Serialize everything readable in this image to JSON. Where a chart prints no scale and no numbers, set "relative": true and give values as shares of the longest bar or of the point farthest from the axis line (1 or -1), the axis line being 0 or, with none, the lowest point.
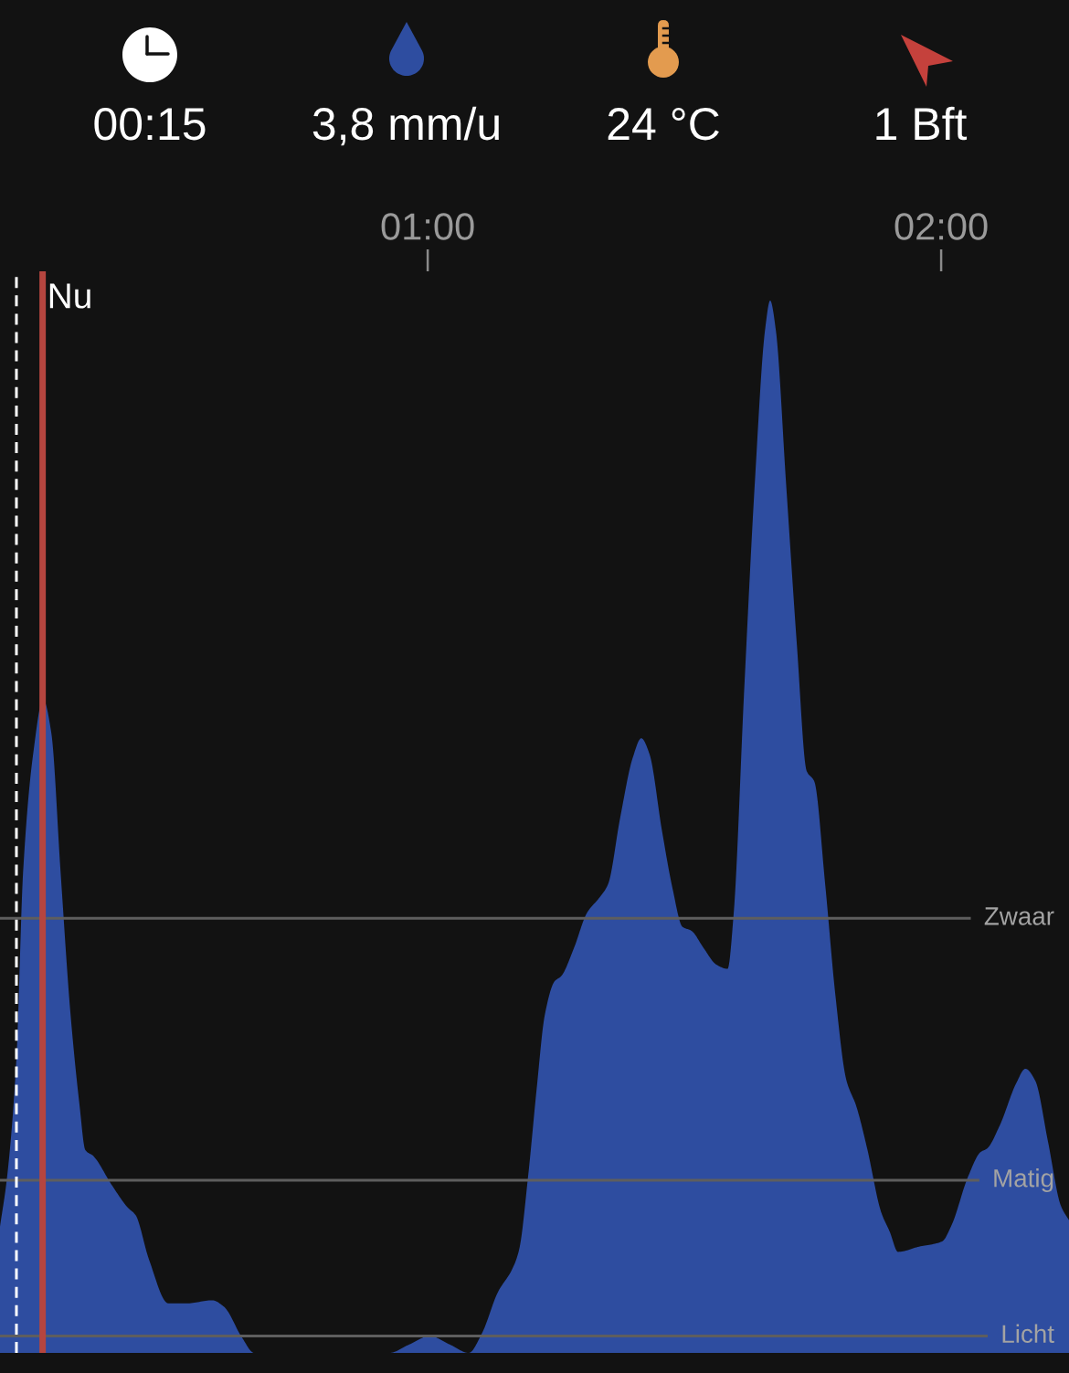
{
  "chart_data": [
    {
      "type": "other",
      "annotations": [
        "00:15",
        "3,8 mm/u",
        "24 °C",
        "1 Bft"
      ]
    },
    {
      "type": "area",
      "relative": true,
      "x": [
        0.167,
        0.181,
        0.199,
        0.212,
        0.231,
        0.251,
        0.267,
        0.285,
        0.304,
        0.322,
        0.333,
        0.349,
        0.384,
        0.416,
        0.431,
        0.457,
        0.495,
        0.53,
        0.58,
        0.603,
        0.639,
        0.662,
        0.925,
        0.964,
        1.004,
        1.043,
        1.08,
        1.105,
        1.137,
        1.165,
        1.178,
        1.196,
        1.212,
        1.228,
        1.247,
        1.26,
        1.285,
        1.31,
        1.335,
        1.351,
        1.375,
        1.399,
        1.416,
        1.432,
        1.456,
        1.477,
        1.496,
        1.514,
        1.537,
        1.562,
        1.584,
        1.596,
        1.616,
        1.637,
        1.657,
        1.667,
        1.678,
        1.698,
        1.719,
        1.738,
        1.753,
        1.774,
        1.794,
        1.815,
        1.835,
        1.856,
        1.883,
        1.9,
        1.916,
        1.957,
        2.002,
        2.02,
        2.052,
        2.077,
        2.089,
        2.114,
        2.146,
        2.164,
        2.183,
        2.208,
        2.233,
        2.249
      ],
      "series": [
        {
          "color": "#2e4da0",
          "values": [
            0.12,
            0.168,
            0.28,
            0.457,
            0.567,
            0.621,
            0.589,
            0.457,
            0.324,
            0.235,
            0.193,
            0.187,
            0.16,
            0.138,
            0.131,
            0.089,
            0.047,
            0.047,
            0.05,
            0.044,
            0.014,
            0,
            0,
            0.008,
            0.016,
            0.008,
            0,
            0.018,
            0.058,
            0.08,
            0.098,
            0.17,
            0.25,
            0.321,
            0.353,
            0.358,
            0.385,
            0.418,
            0.433,
            0.445,
            0.509,
            0.565,
            0.584,
            0.569,
            0.497,
            0.441,
            0.405,
            0.401,
            0.385,
            0.369,
            0.365,
            0.418,
            0.626,
            0.826,
            0.972,
            1.0,
            0.972,
            0.826,
            0.673,
            0.553,
            0.543,
            0.446,
            0.34,
            0.26,
            0.234,
            0.194,
            0.134,
            0.115,
            0.096,
            0.101,
            0.106,
            0.121,
            0.167,
            0.191,
            0.194,
            0.216,
            0.256,
            0.27,
            0.259,
            0.201,
            0.14,
            0.126
          ]
        }
      ],
      "xlim": [
        0.167,
        2.249
      ],
      "xticks": [
        {
          "value": 1,
          "label": "01:00"
        },
        {
          "value": 2,
          "label": "02:00"
        }
      ],
      "tick_labels": "x",
      "ref_lines": [
        {
          "axis": "x",
          "value": 0.199,
          "color": "#ffffff",
          "line_style": "dashed"
        },
        {
          "axis": "x",
          "value": 0.25,
          "label": "Nu",
          "color": "#b5453f"
        },
        {
          "axis": "y",
          "value": 0.413,
          "label": "Zwaar",
          "color": "#5e5e5e"
        },
        {
          "axis": "y",
          "value": 0.164,
          "label": "Matig",
          "color": "#5e5e5e"
        },
        {
          "axis": "y",
          "value": 0.016,
          "label": "Licht",
          "color": "#5e5e5e"
        }
      ]
    }
  ]
}
